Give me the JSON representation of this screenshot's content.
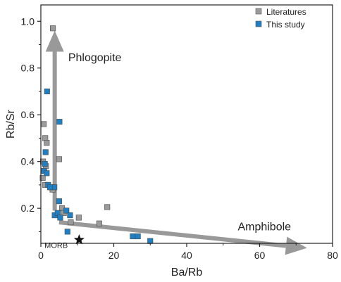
{
  "chart_data": {
    "type": "scatter",
    "xlabel": "Ba/Rb",
    "ylabel": "Rb/Sr",
    "xlim": [
      0,
      80
    ],
    "ylim": [
      0.05,
      1.07
    ],
    "xticks": [
      "0",
      "20",
      "40",
      "60",
      "80"
    ],
    "yticks": [
      "0.2",
      "0.4",
      "0.6",
      "0.8",
      "1.0"
    ],
    "xtick_values": [
      0,
      20,
      40,
      60,
      80
    ],
    "ytick_values": [
      0.2,
      0.4,
      0.6,
      0.8,
      1.0
    ],
    "grid": false,
    "legend_position": "top-right",
    "series": [
      {
        "name": "Literatures",
        "color": "#9b9b9b",
        "marker": "square",
        "points": [
          {
            "x": 3.3,
            "y": 0.97
          },
          {
            "x": 0.8,
            "y": 0.56
          },
          {
            "x": 1.2,
            "y": 0.5
          },
          {
            "x": 1.6,
            "y": 0.48
          },
          {
            "x": 5.0,
            "y": 0.41
          },
          {
            "x": 0.6,
            "y": 0.4
          },
          {
            "x": 1.4,
            "y": 0.38
          },
          {
            "x": 0.5,
            "y": 0.33
          },
          {
            "x": 1.2,
            "y": 0.3
          },
          {
            "x": 2.7,
            "y": 0.29
          },
          {
            "x": 3.2,
            "y": 0.28
          },
          {
            "x": 5.8,
            "y": 0.2
          },
          {
            "x": 18.2,
            "y": 0.205
          },
          {
            "x": 6.3,
            "y": 0.18
          },
          {
            "x": 10.4,
            "y": 0.16
          },
          {
            "x": 16.0,
            "y": 0.135
          },
          {
            "x": 8.2,
            "y": 0.14
          }
        ]
      },
      {
        "name": "This study",
        "color": "#1f7fc4",
        "marker": "square",
        "points": [
          {
            "x": 1.7,
            "y": 0.7
          },
          {
            "x": 5.1,
            "y": 0.57
          },
          {
            "x": 1.3,
            "y": 0.44
          },
          {
            "x": 1.1,
            "y": 0.39
          },
          {
            "x": 0.9,
            "y": 0.36
          },
          {
            "x": 1.6,
            "y": 0.35
          },
          {
            "x": 2.0,
            "y": 0.3
          },
          {
            "x": 3.7,
            "y": 0.29
          },
          {
            "x": 2.5,
            "y": 0.29
          },
          {
            "x": 5.0,
            "y": 0.23
          },
          {
            "x": 3.8,
            "y": 0.17
          },
          {
            "x": 4.6,
            "y": 0.18
          },
          {
            "x": 5.3,
            "y": 0.16
          },
          {
            "x": 7.0,
            "y": 0.19
          },
          {
            "x": 8.0,
            "y": 0.17
          },
          {
            "x": 7.3,
            "y": 0.1
          },
          {
            "x": 25.2,
            "y": 0.08
          },
          {
            "x": 26.6,
            "y": 0.08
          },
          {
            "x": 30.0,
            "y": 0.06
          }
        ]
      }
    ],
    "annotations": [
      {
        "text": "Phlogopite",
        "x": 7.5,
        "y": 0.83
      },
      {
        "text": "Amphibole",
        "x": 54,
        "y": 0.105
      },
      {
        "text": "MORB",
        "x": 1.0,
        "y": 0.03
      }
    ],
    "arrows": [
      {
        "from": [
          3.8,
          0.19
        ],
        "to": [
          3.8,
          0.96
        ],
        "color": "#999999"
      },
      {
        "from": [
          5.0,
          0.14
        ],
        "to": [
          73,
          0.03
        ],
        "color": "#999999"
      }
    ],
    "reference_point": {
      "name": "MORB",
      "x": 10.5,
      "y": 0.05,
      "marker": "star",
      "color": "#111111"
    }
  }
}
